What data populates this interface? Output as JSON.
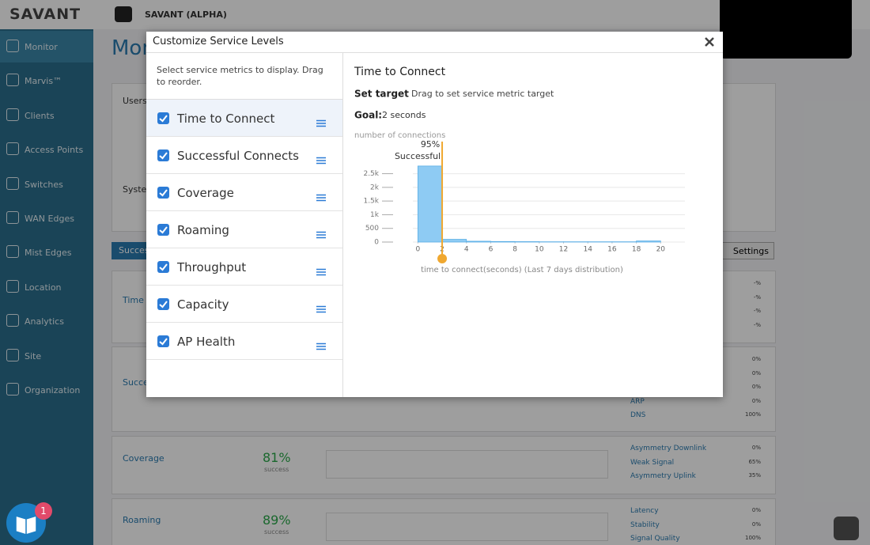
{
  "header": {
    "brand": "SAVANT",
    "org": "SAVANT (ALPHA)"
  },
  "sidebar": [
    "Monitor",
    "Marvis™",
    "Clients",
    "Access Points",
    "Switches",
    "WAN Edges",
    "Mist Edges",
    "Location",
    "Analytics",
    "Site",
    "Organization"
  ],
  "background": {
    "page_title": "Mon",
    "users": "Users",
    "system": "Syste",
    "tab": "Succes",
    "settings": "Settings",
    "rows": [
      {
        "name": "Time"
      },
      {
        "name": "Succe"
      },
      {
        "name": "Coverage",
        "value": "81%",
        "sub": "success"
      },
      {
        "name": "Roaming",
        "value": "89%",
        "sub": "success"
      }
    ],
    "stats": [
      [
        {
          "value": "-%"
        },
        {
          "value": "-%"
        },
        {
          "value": "-%"
        },
        {
          "value": "-%"
        }
      ],
      [
        {
          "value": "0%"
        },
        {
          "value": "0%"
        },
        {
          "value": "0%"
        },
        {
          "label": "ARP",
          "value": "0%"
        },
        {
          "label": "DNS",
          "value": "100%"
        }
      ],
      [
        {
          "label": "Asymmetry Downlink",
          "value": "0%"
        },
        {
          "label": "Weak Signal",
          "value": "65%"
        },
        {
          "label": "Asymmetry Uplink",
          "value": "35%"
        }
      ],
      [
        {
          "label": "Latency",
          "value": "0%"
        },
        {
          "label": "Stability",
          "value": "0%"
        },
        {
          "label": "Signal Quality",
          "value": "100%"
        }
      ]
    ]
  },
  "badge": "1",
  "modal": {
    "title": "Customize Service Levels",
    "instructions": "Select service metrics to display. Drag to reorder.",
    "metrics": [
      "Time to Connect",
      "Successful Connects",
      "Coverage",
      "Roaming",
      "Throughput",
      "Capacity",
      "AP Health"
    ],
    "detail": {
      "title": "Time to Connect",
      "set_target": "Set target",
      "set_target_hint": "Drag to set service metric target",
      "goal_label": "Goal:",
      "goal_value": "2 seconds"
    },
    "chart": {
      "type": "histogram",
      "ylabel": "number of connections",
      "xlabel": "time to connect(seconds) (Last 7 days distribution)",
      "bins": [
        0,
        2,
        4,
        6,
        8,
        10,
        12,
        14,
        16,
        18,
        20
      ],
      "counts": [
        2780,
        100,
        30,
        20,
        15,
        10,
        10,
        10,
        10,
        40
      ],
      "color": "#8ecbf3",
      "xlim": [
        -1,
        22
      ],
      "ylim": [
        0,
        3500
      ],
      "xticks": [
        0,
        2,
        4,
        6,
        8,
        10,
        12,
        14,
        16,
        18,
        20
      ],
      "yticks": [
        0,
        500,
        {
          "value": 1000,
          "label": "1k"
        },
        {
          "value": 1500,
          "label": "1.5k"
        },
        {
          "value": 2000,
          "label": "2k"
        },
        {
          "value": 2500,
          "label": "2.5k"
        }
      ],
      "grid": true,
      "target": 2,
      "target_color": "#f0a830",
      "annotation": {
        "value": "95%",
        "text": "Successful"
      }
    }
  }
}
